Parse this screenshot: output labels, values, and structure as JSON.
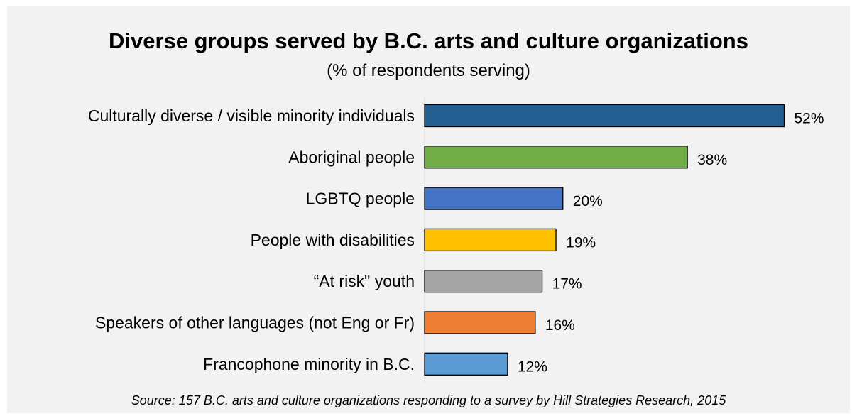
{
  "chart_data": {
    "type": "bar",
    "orientation": "horizontal",
    "title": "Diverse groups served by B.C. arts and culture organizations",
    "subtitle": "(% of respondents serving)",
    "source": "Source: 157 B.C. arts and culture organizations responding to a survey by Hill Strategies Research, 2015",
    "categories": [
      "Culturally diverse / visible minority individuals",
      "Aboriginal people",
      "LGBTQ people",
      "People with disabilities",
      "“At risk\" youth",
      "Speakers of other languages (not Eng or Fr)",
      "Francophone minority in B.C."
    ],
    "values": [
      52,
      38,
      20,
      19,
      17,
      16,
      12
    ],
    "value_labels": [
      "52%",
      "38%",
      "20%",
      "19%",
      "17%",
      "16%",
      "12%"
    ],
    "colors": [
      "#255e91",
      "#70ad47",
      "#4472c4",
      "#ffc000",
      "#a5a5a5",
      "#ed7d31",
      "#5b9bd5"
    ],
    "xlim": [
      0,
      60
    ],
    "grid": false,
    "legend": "none"
  }
}
